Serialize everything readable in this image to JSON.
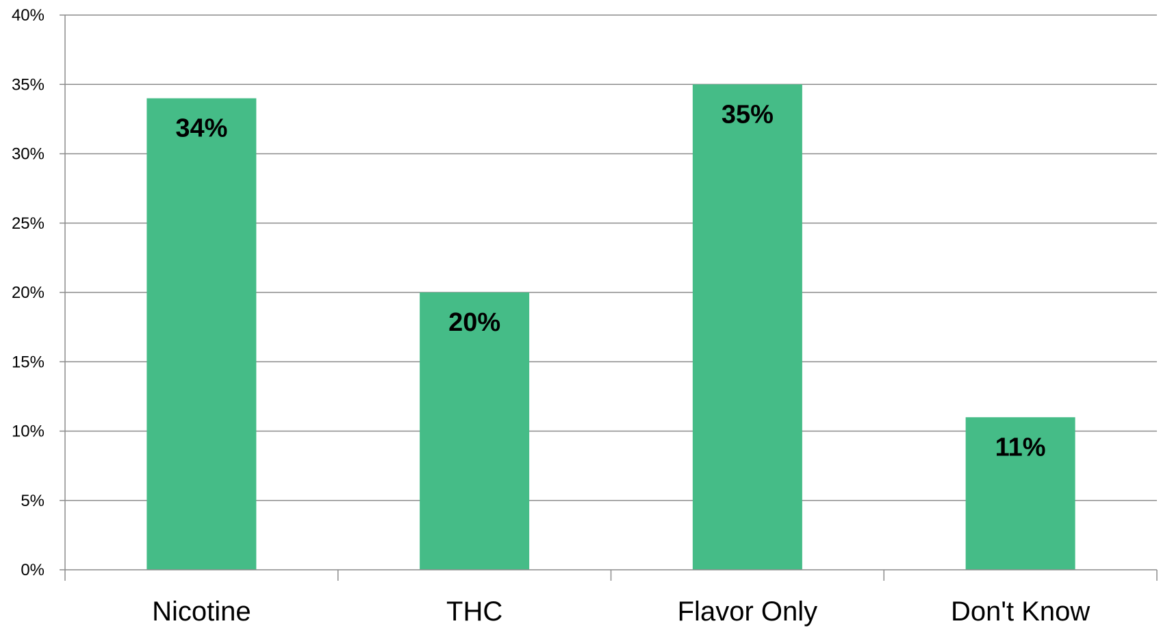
{
  "chart_data": {
    "type": "bar",
    "title": "",
    "xlabel": "",
    "ylabel": "",
    "categories": [
      "Nicotine",
      "THC",
      "Flavor Only",
      "Don't Know"
    ],
    "values": [
      34,
      20,
      35,
      11
    ],
    "data_labels": [
      "34%",
      "20%",
      "35%",
      "11%"
    ],
    "ylim": [
      0,
      40
    ],
    "ytick_step": 5,
    "yticks": [
      "0%",
      "5%",
      "10%",
      "15%",
      "20%",
      "25%",
      "30%",
      "35%",
      "40%"
    ],
    "grid": true,
    "legend": "none",
    "colors": {
      "bar": "#45BC87",
      "grid": "#8C8C8C",
      "axis": "#8C8C8C"
    }
  }
}
